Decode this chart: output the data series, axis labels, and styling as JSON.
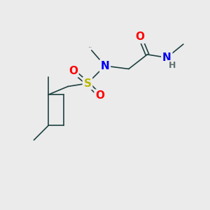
{
  "bg_color": "#ebebeb",
  "bond_color": "#1f4040",
  "bond_width": 1.2,
  "atom_colors": {
    "O": "#ff0000",
    "N": "#0000ee",
    "S": "#b8b800",
    "H": "#607070",
    "C": "#1f4040"
  },
  "font_size_atom": 11,
  "font_size_small": 9
}
